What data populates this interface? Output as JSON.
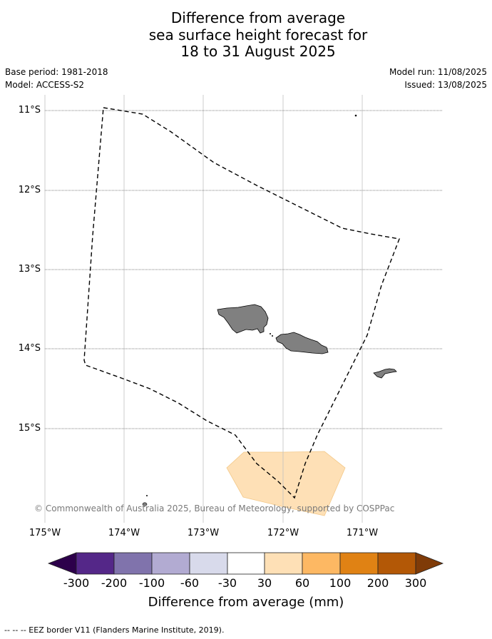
{
  "title": {
    "line1": "Difference from average",
    "line2": "sea surface height forecast for",
    "line3": "18 to 31 August 2025"
  },
  "meta": {
    "base_period": "Base period: 1981-2018",
    "model": "Model: ACCESS-S2",
    "model_run": "Model run: 11/08/2025",
    "issued": "Issued: 13/08/2025"
  },
  "map": {
    "lat_labels": [
      "11°S",
      "12°S",
      "13°S",
      "14°S",
      "15°S"
    ],
    "lon_labels": [
      "175°W",
      "174°W",
      "173°W",
      "172°W",
      "171°W"
    ],
    "land_color": "#808080",
    "anomaly_fill_color": "#fee0b6",
    "copyright": "© Commonwealth of Australia 2025, Bureau of Meteorology, supported by COSPPac"
  },
  "colorbar": {
    "colors": [
      "#2d004b",
      "#542788",
      "#8073ac",
      "#b2abd2",
      "#d8daeb",
      "#ffffff",
      "#fee0b6",
      "#fdb863",
      "#e08214",
      "#b35806",
      "#7f3b08"
    ],
    "tick_labels": [
      "-300",
      "-200",
      "-100",
      "-60",
      "-30",
      "30",
      "60",
      "100",
      "200",
      "300"
    ],
    "label": "Difference from average (mm)"
  },
  "footnote": "--  --  -- EEZ border V11 (Flanders Marine Institute, 2019)."
}
